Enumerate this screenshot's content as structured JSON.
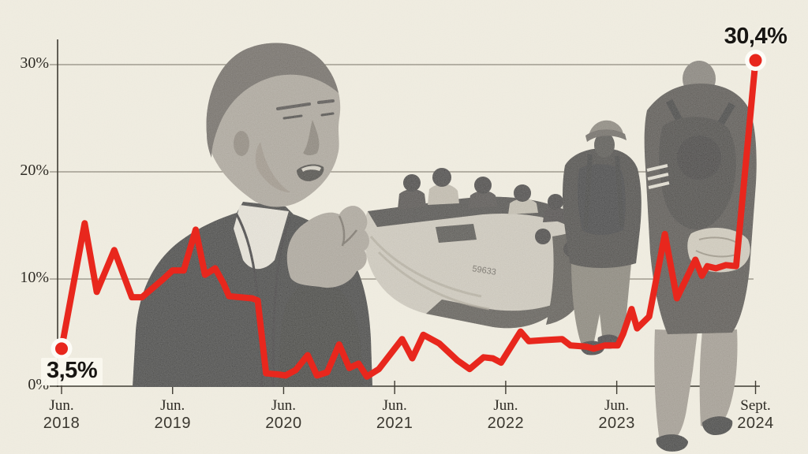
{
  "page": {
    "background": "#f2eee2"
  },
  "colors": {
    "accent_red": "#e8271d",
    "axis": "#3f3c33",
    "gridline": "#908b7f",
    "label": "#2e2b25",
    "callout_text": "#181613",
    "dot_halo": "#fdfcf7"
  },
  "collage": {
    "boat_marking": "59633",
    "items": [
      {
        "name": "politician-speaking-photo"
      },
      {
        "name": "migrant-boat-photo"
      },
      {
        "name": "migrants-walking-photo"
      }
    ]
  },
  "chart_data": {
    "type": "line",
    "grid": "horizontal",
    "legend": "none",
    "x_axis": {
      "unit": "months-since-jun-2018",
      "range": [
        0,
        75
      ],
      "ticks": [
        {
          "label_month": "Jun.",
          "label_year": "2018",
          "month_index": 0
        },
        {
          "label_month": "Jun.",
          "label_year": "2019",
          "month_index": 12
        },
        {
          "label_month": "Jun.",
          "label_year": "2020",
          "month_index": 24
        },
        {
          "label_month": "Jun.",
          "label_year": "2021",
          "month_index": 36
        },
        {
          "label_month": "Jun.",
          "label_year": "2022",
          "month_index": 48
        },
        {
          "label_month": "Jun.",
          "label_year": "2023",
          "month_index": 60
        },
        {
          "label_month": "Sept.",
          "label_year": "2024",
          "month_index": 75
        }
      ]
    },
    "y_axis": {
      "unit": "%",
      "range": [
        0,
        32
      ],
      "ticks": [
        {
          "label": "0%",
          "value": 0
        },
        {
          "label": "10%",
          "value": 10
        },
        {
          "label": "20%",
          "value": 20
        },
        {
          "label": "30%",
          "value": 30
        }
      ]
    },
    "series": [
      {
        "name": "red-line",
        "color": "#e8271d",
        "points": [
          [
            0,
            3.5
          ],
          [
            2.5,
            15.2
          ],
          [
            3.8,
            8.8
          ],
          [
            5.7,
            12.7
          ],
          [
            7.6,
            8.3
          ],
          [
            8.7,
            8.3
          ],
          [
            11,
            10.0
          ],
          [
            12,
            10.8
          ],
          [
            13.2,
            10.8
          ],
          [
            14.5,
            14.6
          ],
          [
            15.5,
            10.4
          ],
          [
            16.6,
            11.0
          ],
          [
            17.5,
            9.6
          ],
          [
            18.1,
            8.4
          ],
          [
            20.6,
            8.2
          ],
          [
            21.2,
            8.0
          ],
          [
            22.1,
            1.2
          ],
          [
            23.4,
            1.1
          ],
          [
            24.2,
            1.0
          ],
          [
            25.3,
            1.5
          ],
          [
            26.6,
            2.9
          ],
          [
            27.6,
            1.0
          ],
          [
            28.7,
            1.3
          ],
          [
            30,
            3.9
          ],
          [
            31.1,
            1.7
          ],
          [
            32.1,
            2.1
          ],
          [
            33,
            0.9
          ],
          [
            34.3,
            1.6
          ],
          [
            36.8,
            4.4
          ],
          [
            37.9,
            2.6
          ],
          [
            39.1,
            4.8
          ],
          [
            40.8,
            4.0
          ],
          [
            42.8,
            2.4
          ],
          [
            44.1,
            1.6
          ],
          [
            45.6,
            2.7
          ],
          [
            46.6,
            2.6
          ],
          [
            47.5,
            2.2
          ],
          [
            49.6,
            5.1
          ],
          [
            50.5,
            4.2
          ],
          [
            52.2,
            4.3
          ],
          [
            54.1,
            4.4
          ],
          [
            55,
            3.8
          ],
          [
            56.7,
            3.7
          ],
          [
            57.5,
            3.5
          ],
          [
            58.7,
            3.8
          ],
          [
            60.1,
            3.8
          ],
          [
            60.7,
            4.9
          ],
          [
            61.6,
            7.2
          ],
          [
            62.2,
            5.4
          ],
          [
            63.5,
            6.5
          ],
          [
            65.2,
            14.2
          ],
          [
            66.5,
            8.2
          ],
          [
            68.5,
            11.8
          ],
          [
            69.2,
            10.3
          ],
          [
            69.8,
            11.2
          ],
          [
            70.7,
            11.0
          ],
          [
            71.8,
            11.3
          ],
          [
            72.9,
            11.2
          ],
          [
            75,
            30.4
          ]
        ]
      }
    ],
    "annotations": [
      {
        "text": "3,5%",
        "month": 0,
        "value": 3.5,
        "position": "below"
      },
      {
        "text": "30,4%",
        "month": 75,
        "value": 30.4,
        "position": "above"
      }
    ]
  }
}
